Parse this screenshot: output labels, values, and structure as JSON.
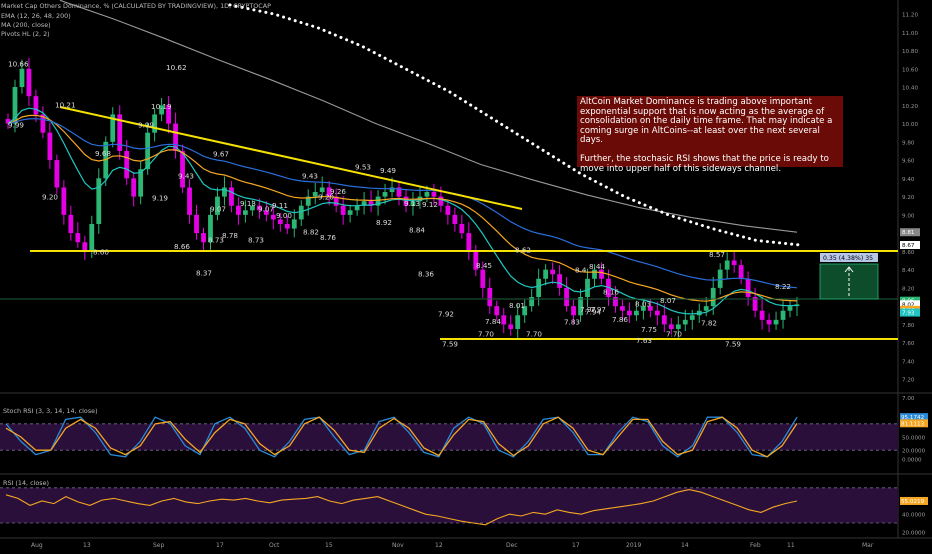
{
  "header": {
    "title": "Market Cap Others Dominance, % (CALCULATED BY TRADINGVIEW), 1D, CRYPTOCAP",
    "ind1": "EMA (12, 26, 48, 200)",
    "ind2": "MA (200, close)",
    "ind3": "Pivots HL (2, 2)"
  },
  "annotation": {
    "p1": "AltCoin Market Dominance is trading above important exponential support that is now acting as the average of consolidation on the daily time frame. That may indicate a coming surge in AltCoins--at least over the next several days.",
    "p2": "Further, the stochasic RSI shows that the price is ready to move into upper half of this sideways channel."
  },
  "measure_label": "0.35 (4.38%) 35",
  "chart_data": [
    {
      "type": "candlestick",
      "title": "Market Cap Others Dominance, % (CALCULATED BY TRADINGVIEW), 1D",
      "ylim": [
        7.0,
        11.3
      ],
      "y_ticks": [
        "11.20",
        "11.00",
        "10.80",
        "10.60",
        "10.40",
        "10.20",
        "10.00",
        "9.80",
        "9.60",
        "9.40",
        "9.20",
        "9.00",
        "8.80",
        "8.60",
        "8.40",
        "8.20",
        "8.00",
        "7.80",
        "7.60",
        "7.40",
        "7.20",
        "7.00"
      ],
      "x_labels": [
        "Aug",
        "13",
        "Sep",
        "17",
        "Oct",
        "15",
        "Nov",
        "12",
        "Dec",
        "17",
        "2019",
        "14",
        "Feb",
        "11",
        "Mar"
      ],
      "price_tags": [
        {
          "value": "8.81",
          "color": "#888888"
        },
        {
          "value": "8.67",
          "color": "#ffffff"
        },
        {
          "value": "8.06",
          "color": "#2bb673"
        },
        {
          "value": "8.02",
          "color": "#ffffff"
        },
        {
          "value": "7.96",
          "color": "#f5a623"
        },
        {
          "value": "7.93",
          "color": "#1fc7c0"
        }
      ],
      "pivot_labels": [
        "10.66",
        "9.99",
        "10.21",
        "9.20",
        "9.68",
        "8.60",
        "9.99",
        "10.19",
        "10.62",
        "9.19",
        "9.43",
        "8.66",
        "8.37",
        "9.67",
        "9.07",
        "9.13",
        "9.07",
        "9.11",
        "8.73",
        "8.78",
        "8.73",
        "9.00",
        "9.43",
        "8.82",
        "9.20",
        "9.26",
        "8.76",
        "9.53",
        "9.49",
        "8.92",
        "9.13",
        "9.12",
        "8.84",
        "8.36",
        "7.92",
        "8.45",
        "8.62",
        "8.01",
        "7.84",
        "7.59",
        "7.70",
        "7.70",
        "8.4",
        "8.44",
        "7.83",
        "7.97",
        "7.94",
        "7.97",
        "8.16",
        "7.86",
        "8.03",
        "7.75",
        "8.07",
        "7.63",
        "7.70",
        "8.57",
        "7.82",
        "8.22",
        "7.59"
      ],
      "series": [
        {
          "name": "close (approx.)",
          "values": [
            10.0,
            10.4,
            10.6,
            10.3,
            10.1,
            9.9,
            9.6,
            9.3,
            9.0,
            8.8,
            8.7,
            8.6,
            8.9,
            9.4,
            9.8,
            10.1,
            9.7,
            9.4,
            9.2,
            9.5,
            9.9,
            10.1,
            10.2,
            10.0,
            9.7,
            9.3,
            9.0,
            8.8,
            8.7,
            9.0,
            9.2,
            9.3,
            9.1,
            9.0,
            9.05,
            9.1,
            9.05,
            9.0,
            8.95,
            8.9,
            8.85,
            8.95,
            9.1,
            9.2,
            9.25,
            9.3,
            9.2,
            9.1,
            9.0,
            9.05,
            9.1,
            9.15,
            9.1,
            9.2,
            9.25,
            9.3,
            9.2,
            9.1,
            9.15,
            9.2,
            9.25,
            9.2,
            9.1,
            9.0,
            8.9,
            8.8,
            8.6,
            8.4,
            8.2,
            8.0,
            7.9,
            7.8,
            7.75,
            7.9,
            8.0,
            8.1,
            8.3,
            8.4,
            8.35,
            8.2,
            8.0,
            7.9,
            8.1,
            8.3,
            8.4,
            8.3,
            8.1,
            8.0,
            7.95,
            7.9,
            7.95,
            8.0,
            7.95,
            7.9,
            7.8,
            7.75,
            7.8,
            7.85,
            7.9,
            7.95,
            8.0,
            8.2,
            8.4,
            8.5,
            8.45,
            8.3,
            8.1,
            7.95,
            7.85,
            7.8,
            7.85,
            7.95,
            8.0,
            8.02
          ]
        },
        {
          "name": "MA (200)",
          "values": [
            11.35,
            11.15,
            10.93,
            10.7,
            10.48,
            10.25,
            10.0,
            9.78,
            9.55,
            9.38,
            9.22,
            9.08,
            8.97,
            8.88,
            8.81
          ]
        },
        {
          "name": "EMA 200",
          "values": [
            11.3,
            11.2,
            11.05,
            10.85,
            10.6,
            10.35,
            10.05,
            9.75,
            9.45,
            9.2,
            9.0,
            8.85,
            8.72,
            8.67
          ]
        }
      ]
    },
    {
      "type": "line",
      "title": "Stoch RSI (3, 3, 14, 14, close)",
      "ylim": [
        0,
        100
      ],
      "y_ticks": [
        "50.0000",
        "20.0000",
        "0.0000"
      ],
      "bands": [
        20,
        80
      ],
      "value_tags": [
        "95.1742",
        "81.1113"
      ],
      "series": [
        {
          "name": "K",
          "values": [
            80,
            40,
            10,
            20,
            90,
            95,
            60,
            10,
            5,
            40,
            95,
            80,
            30,
            10,
            80,
            95,
            70,
            20,
            5,
            40,
            90,
            95,
            50,
            10,
            20,
            85,
            95,
            60,
            15,
            5,
            70,
            95,
            80,
            20,
            5,
            40,
            90,
            95,
            60,
            10,
            10,
            60,
            95,
            85,
            30,
            5,
            30,
            95,
            95,
            60,
            10,
            5,
            40,
            95
          ]
        },
        {
          "name": "D",
          "values": [
            70,
            50,
            20,
            20,
            70,
            90,
            70,
            25,
            10,
            30,
            80,
            85,
            45,
            15,
            60,
            90,
            80,
            35,
            10,
            30,
            80,
            95,
            65,
            20,
            15,
            70,
            92,
            70,
            25,
            8,
            55,
            90,
            85,
            35,
            8,
            30,
            80,
            95,
            70,
            20,
            10,
            50,
            90,
            90,
            40,
            10,
            20,
            85,
            95,
            70,
            20,
            5,
            30,
            81
          ]
        }
      ]
    },
    {
      "type": "line",
      "title": "RSI (14, close)",
      "ylim": [
        10,
        80
      ],
      "y_ticks": [
        "40.0000",
        "20.0000"
      ],
      "bands": [
        30,
        70
      ],
      "value_tags": [
        "55.0219"
      ],
      "series": [
        {
          "name": "RSI",
          "values": [
            62,
            58,
            50,
            55,
            52,
            60,
            54,
            50,
            56,
            58,
            55,
            52,
            50,
            55,
            58,
            54,
            52,
            55,
            57,
            56,
            58,
            55,
            53,
            56,
            57,
            58,
            60,
            55,
            52,
            56,
            58,
            60,
            55,
            50,
            45,
            40,
            38,
            35,
            32,
            30,
            28,
            35,
            40,
            38,
            42,
            40,
            45,
            42,
            40,
            44,
            46,
            48,
            50,
            52,
            55,
            60,
            65,
            68,
            65,
            60,
            55,
            50,
            45,
            42,
            48,
            52,
            55
          ]
        }
      ]
    }
  ],
  "colors": {
    "bg": "#000000",
    "bull": "#2bb673",
    "bear": "#e600e6",
    "ema12": "#1fc7c0",
    "ema26": "#f5a623",
    "ema48": "#2a6edb",
    "ma200": "#999999",
    "ema200": "#ffffff",
    "trend": "#f5e200",
    "stochK": "#2a8ad8",
    "stochD": "#f5a623",
    "rsi": "#f5a623",
    "bandFill": "#2a0f3a"
  }
}
